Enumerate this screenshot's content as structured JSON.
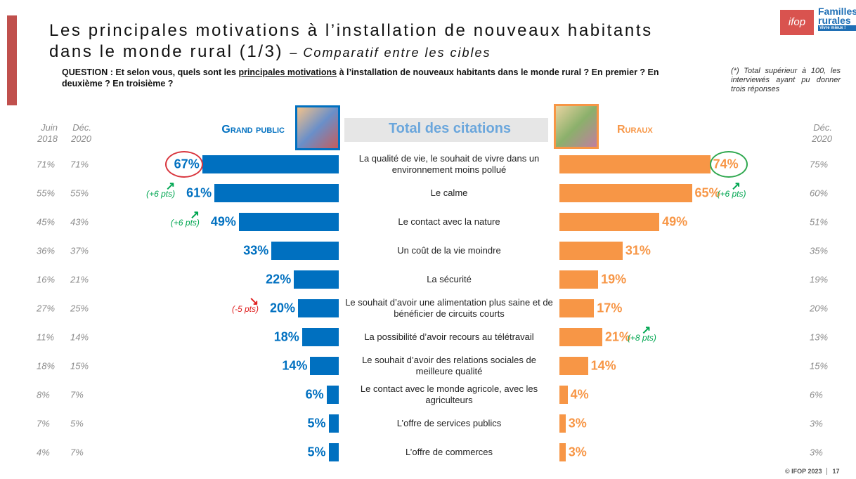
{
  "header": {
    "title_line1": "Les principales motivations à l’installation de nouveaux habitants",
    "title_line2": "dans le monde rural (1/3)",
    "title_sub": "– Comparatif entre les cibles"
  },
  "question": {
    "start": "QUESTION : Et selon vous, quels sont les",
    "underlined": "principales motivations",
    "end": "à l’installation de nouveaux habitants dans le monde rural ? En premier ? En deuxième ? En troisième ?"
  },
  "note": "(*) Total supérieur à 100, les interviewés ayant pu donner trois réponses",
  "logo": {
    "ifop": "ifop",
    "brand_line1": "Familles",
    "brand_line2": "rurales",
    "tagline": "Vivre mieux !"
  },
  "footer": {
    "copyright": "© IFOP 2023",
    "page": "17"
  },
  "chart_data": {
    "type": "butterfly",
    "center_title": "Total des citations",
    "xlim": [
      0,
      100
    ],
    "categories": [
      "La qualité de vie, le souhait de vivre dans un environnement moins pollué",
      "Le calme",
      "Le contact avec la nature",
      "Un coût de la vie moindre",
      "La sécurité",
      "Le souhait d’avoir une alimentation plus saine et de bénéficier de circuits courts",
      "La possibilité d’avoir recours au télétravail",
      "Le souhait d’avoir des relations sociales de meilleure qualité",
      "Le contact avec le monde agricole, avec les agriculteurs",
      "L’offre de services publics",
      "L’offre de commerces"
    ],
    "series": [
      {
        "name": "Grand public",
        "color": "#0070c0",
        "side": "left",
        "values": [
          67,
          61,
          49,
          33,
          22,
          20,
          18,
          14,
          6,
          5,
          5
        ],
        "value_labels": [
          "67%",
          "61%",
          "49%",
          "33%",
          "22%",
          "20%",
          "18%",
          "14%",
          "6%",
          "5%",
          "5%"
        ],
        "changes": [
          null,
          "(+6 pts)",
          "(+6 pts)",
          null,
          null,
          "(-5 pts)",
          null,
          null,
          null,
          null,
          null
        ],
        "history": [
          {
            "name": "Juin 2018",
            "labels": [
              "71%",
              "55%",
              "45%",
              "36%",
              "16%",
              "27%",
              "11%",
              "18%",
              "8%",
              "7%",
              "4%"
            ]
          },
          {
            "name": "Déc. 2020",
            "labels": [
              "71%",
              "55%",
              "43%",
              "37%",
              "21%",
              "25%",
              "14%",
              "15%",
              "7%",
              "5%",
              "7%"
            ]
          }
        ]
      },
      {
        "name": "Ruraux",
        "color": "#f79646",
        "side": "right",
        "values": [
          74,
          65,
          49,
          31,
          19,
          17,
          21,
          14,
          4,
          3,
          3
        ],
        "value_labels": [
          "74%",
          "65%",
          "49%",
          "31%",
          "19%",
          "17%",
          "21%",
          "14%",
          "4%",
          "3%",
          "3%"
        ],
        "changes": [
          null,
          "(+6 pts)",
          null,
          null,
          null,
          null,
          "(+8 pts)",
          null,
          null,
          null,
          null
        ],
        "history": [
          {
            "name": "Déc. 2020",
            "labels": [
              "75%",
              "60%",
              "51%",
              "35%",
              "19%",
              "20%",
              "13%",
              "15%",
              "6%",
              "3%",
              "3%"
            ]
          }
        ]
      }
    ]
  }
}
